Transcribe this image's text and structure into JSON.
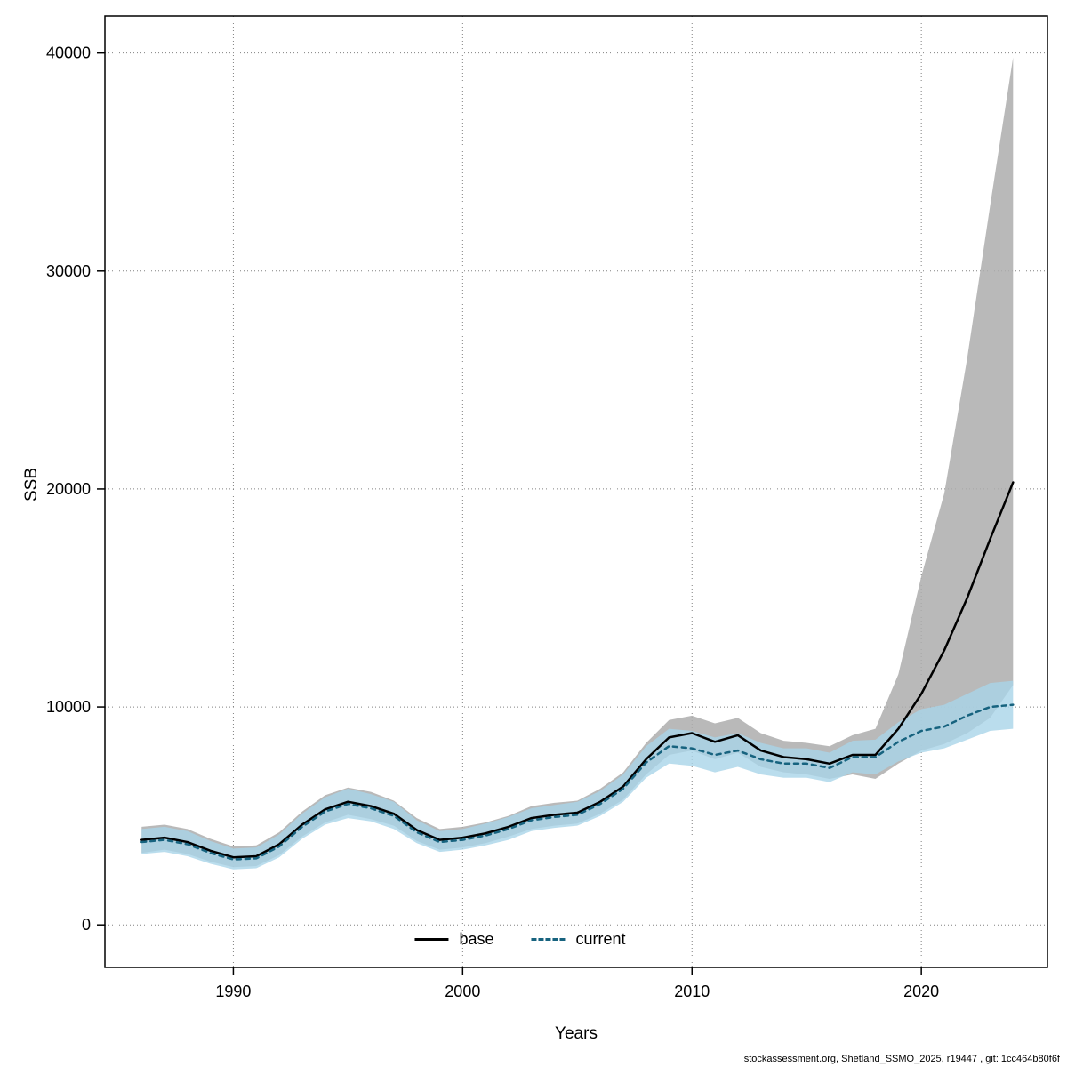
{
  "footer": {
    "text": "stockassessment.org, Shetland_SSMO_2025, r19447 , git: 1cc464b80f6f"
  },
  "chart_data": {
    "type": "line",
    "title": "",
    "xlabel": "Years",
    "ylabel": "SSB",
    "x_ticks": [
      1990,
      2000,
      2010,
      2020
    ],
    "y_ticks": [
      0,
      10000,
      20000,
      30000,
      40000
    ],
    "xlim": [
      1984.4,
      2025.5
    ],
    "ylim": [
      -1950,
      41700
    ],
    "grid": "dotted",
    "grid_color": "#808080",
    "legend": {
      "position": "bottom-center-inside",
      "entries": [
        {
          "label": "base",
          "color": "#000000",
          "style": "solid"
        },
        {
          "label": "current",
          "color": "#17637f",
          "style": "dashed"
        }
      ]
    },
    "x": [
      1986,
      1987,
      1988,
      1989,
      1990,
      1991,
      1992,
      1993,
      1994,
      1995,
      1996,
      1997,
      1998,
      1999,
      2000,
      2001,
      2002,
      2003,
      2004,
      2005,
      2006,
      2007,
      2008,
      2009,
      2010,
      2011,
      2012,
      2013,
      2014,
      2015,
      2016,
      2017,
      2018,
      2019,
      2020,
      2021,
      2022,
      2023,
      2024
    ],
    "series": [
      {
        "name": "base",
        "color": "#000000",
        "band_color": "#adadad",
        "band_opacity": 0.85,
        "line_style": "solid",
        "values": [
          3900,
          4000,
          3800,
          3400,
          3100,
          3150,
          3700,
          4600,
          5300,
          5650,
          5450,
          5100,
          4350,
          3900,
          4000,
          4200,
          4500,
          4900,
          5050,
          5150,
          5650,
          6350,
          7600,
          8600,
          8800,
          8400,
          8700,
          8000,
          7700,
          7600,
          7400,
          7800,
          7800,
          9000,
          10600,
          12600,
          15000,
          17700,
          20300
        ],
        "lower": [
          3300,
          3450,
          3250,
          2900,
          2650,
          2700,
          3200,
          4050,
          4700,
          5050,
          4850,
          4550,
          3850,
          3450,
          3550,
          3750,
          4050,
          4400,
          4550,
          4650,
          5100,
          5750,
          6900,
          7800,
          8000,
          7600,
          7900,
          7250,
          7000,
          6900,
          6700,
          6900,
          6700,
          7400,
          8000,
          8300,
          8800,
          9500,
          11000
        ],
        "upper": [
          4500,
          4600,
          4400,
          3950,
          3600,
          3650,
          4250,
          5200,
          5950,
          6300,
          6100,
          5700,
          4900,
          4400,
          4500,
          4700,
          5000,
          5450,
          5600,
          5700,
          6250,
          7000,
          8350,
          9400,
          9600,
          9250,
          9500,
          8800,
          8450,
          8350,
          8200,
          8700,
          9000,
          11500,
          16000,
          19800,
          26000,
          33000,
          39800
        ]
      },
      {
        "name": "current",
        "color": "#17637f",
        "band_color": "#a9d4e8",
        "band_opacity": 0.8,
        "line_style": "dashed",
        "values": [
          3800,
          3900,
          3700,
          3300,
          3000,
          3050,
          3600,
          4500,
          5200,
          5550,
          5350,
          5000,
          4250,
          3800,
          3900,
          4100,
          4400,
          4800,
          4950,
          5050,
          5550,
          6250,
          7450,
          8200,
          8100,
          7800,
          8000,
          7600,
          7400,
          7400,
          7200,
          7700,
          7700,
          8400,
          8900,
          9100,
          9600,
          10000,
          10100
        ],
        "lower": [
          3250,
          3350,
          3150,
          2800,
          2550,
          2600,
          3100,
          3950,
          4600,
          4900,
          4750,
          4400,
          3750,
          3350,
          3450,
          3650,
          3900,
          4300,
          4450,
          4550,
          5000,
          5650,
          6750,
          7400,
          7300,
          7000,
          7250,
          6900,
          6750,
          6750,
          6550,
          7000,
          6900,
          7500,
          7900,
          8100,
          8500,
          8900,
          9000
        ],
        "upper": [
          4400,
          4500,
          4300,
          3850,
          3500,
          3550,
          4150,
          5100,
          5850,
          6250,
          6000,
          5650,
          4800,
          4300,
          4400,
          4650,
          4950,
          5350,
          5500,
          5650,
          6150,
          6900,
          8200,
          9000,
          8900,
          8600,
          8800,
          8350,
          8100,
          8100,
          7900,
          8450,
          8500,
          9300,
          9900,
          10100,
          10600,
          11100,
          11200
        ]
      }
    ]
  }
}
